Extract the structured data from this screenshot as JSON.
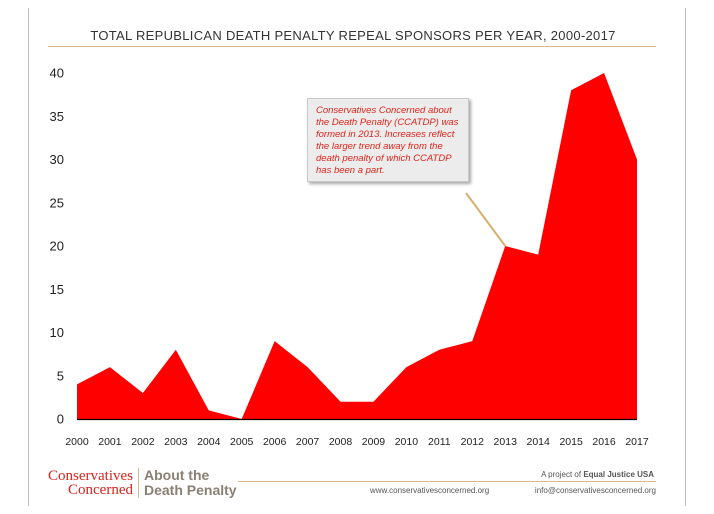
{
  "chart_data": {
    "type": "area",
    "title": "TOTAL REPUBLICAN DEATH PENALTY REPEAL SPONSORS PER YEAR, 2000-2017",
    "x": [
      2000,
      2001,
      2002,
      2003,
      2004,
      2005,
      2006,
      2007,
      2008,
      2009,
      2010,
      2011,
      2012,
      2013,
      2014,
      2015,
      2016,
      2017
    ],
    "values": [
      4,
      6,
      3,
      8,
      1,
      0,
      9,
      6,
      2,
      2,
      6,
      8,
      9,
      20,
      19,
      38,
      40,
      30
    ],
    "ylim": [
      0,
      40
    ],
    "yticks": [
      0,
      5,
      10,
      15,
      20,
      25,
      30,
      35,
      40
    ],
    "xlabel": "",
    "ylabel": "",
    "fill_color": "#ff0000",
    "grid": false,
    "annotation": {
      "text": "Conservatives Concerned about the Death Penalty (CCATDP) was formed in 2013. Increases reflect the larger trend away from the death penalty of which CCATDP has been a part.",
      "points_to_x": 2013,
      "points_to_y": 20
    }
  },
  "footer": {
    "logo_line1": "Conservatives",
    "logo_line2": "Concerned",
    "logo_about_1": "About the",
    "logo_about_2": "Death Penalty",
    "project_prefix": "A project of ",
    "project_name": "Equal Justice USA",
    "website": "www.conservativesconcerned.org",
    "email": "info@conservativesconcerned.org"
  }
}
